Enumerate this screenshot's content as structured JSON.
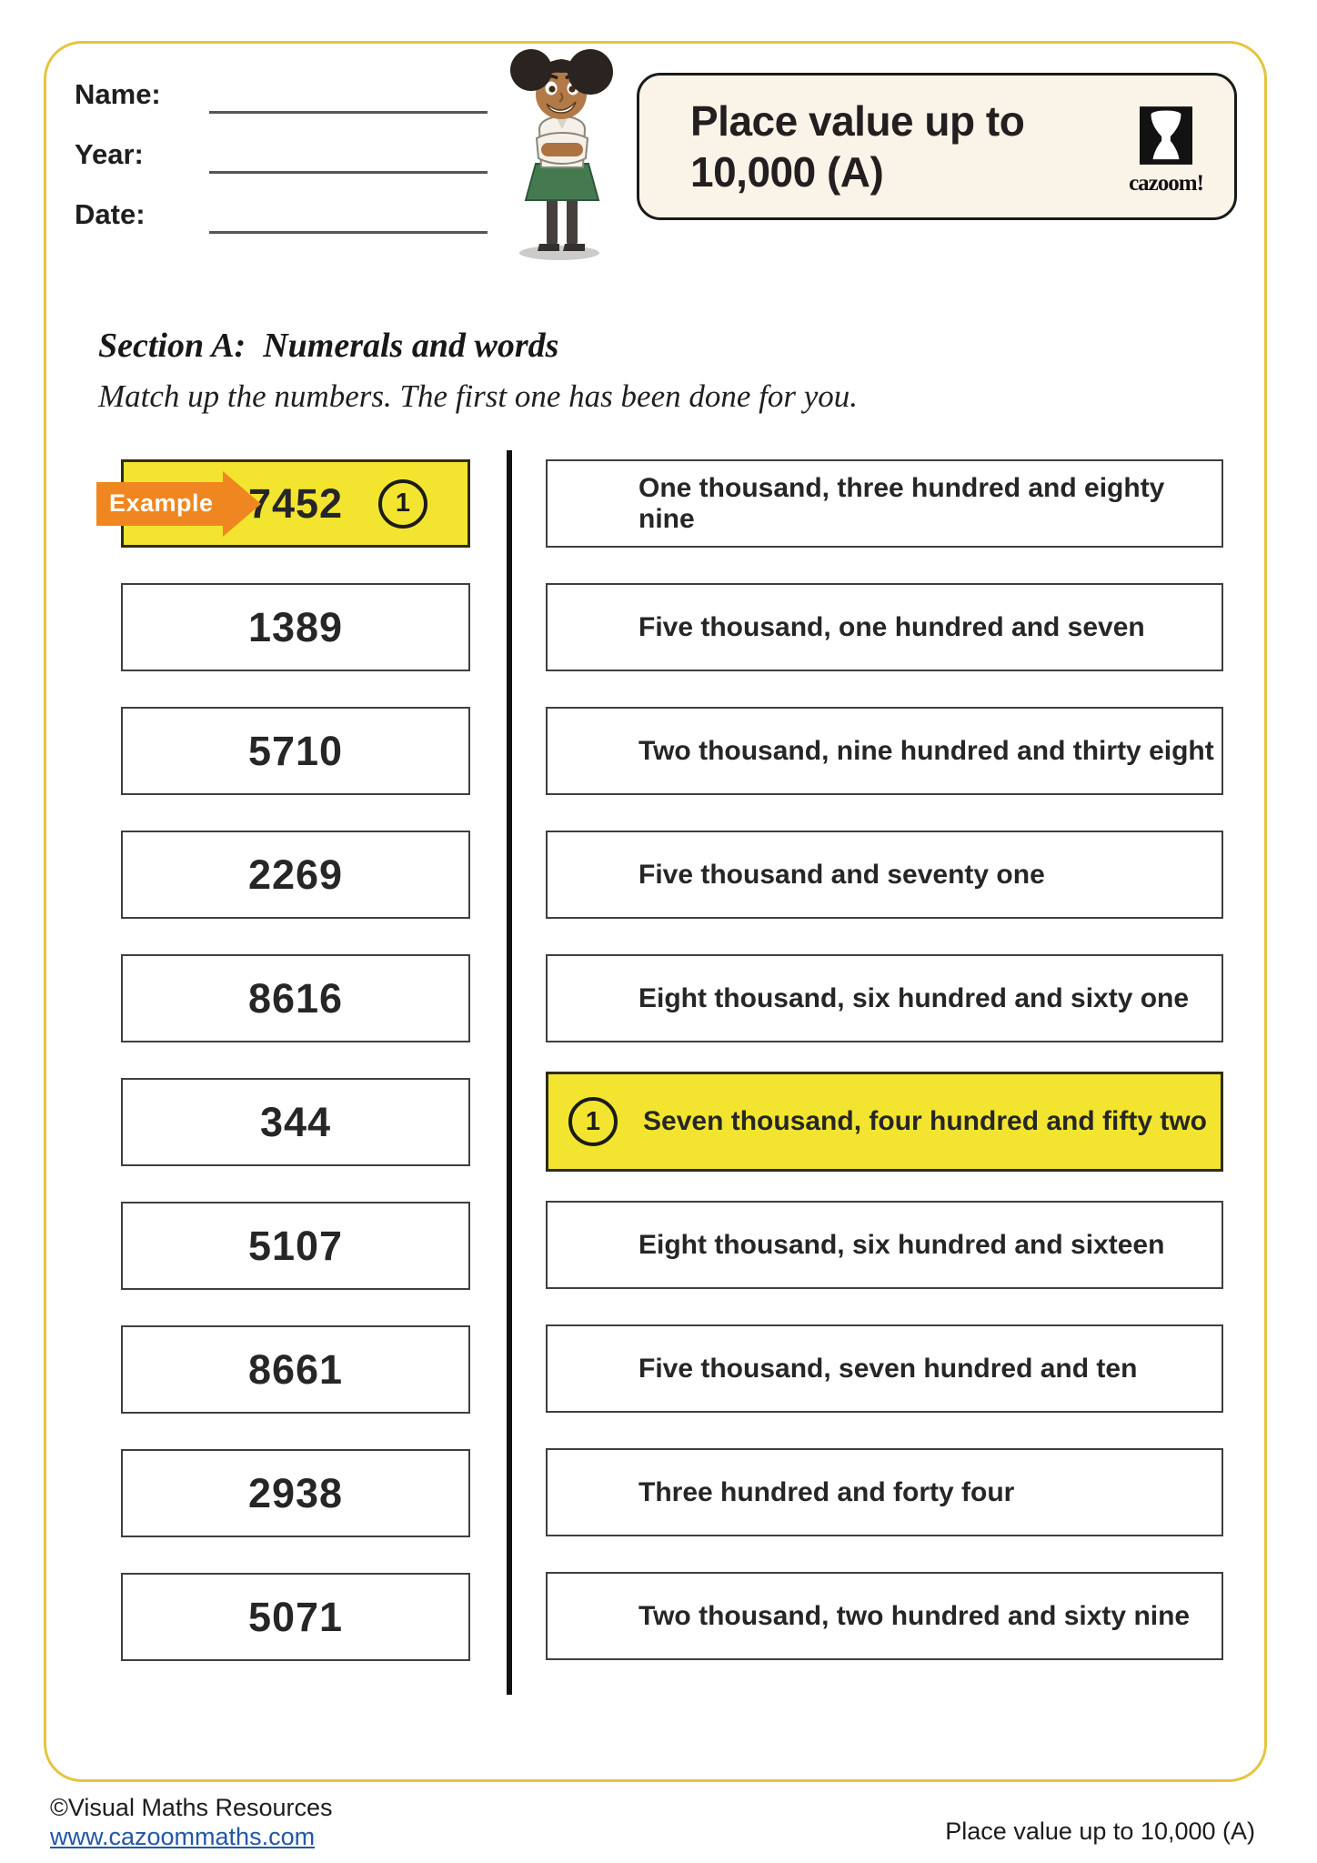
{
  "header": {
    "fields": [
      {
        "label": "Name:"
      },
      {
        "label": "Year:"
      },
      {
        "label": "Date:"
      }
    ],
    "title": {
      "line1": "Place value up to",
      "line2": "10,000 (A)"
    },
    "logo_text": "cazoom!"
  },
  "section": {
    "heading": "Section A:  Numerals and words",
    "instructions": "Match up the numbers. The first one has been done for you."
  },
  "example_label": "Example",
  "match": {
    "numbers": [
      {
        "value": "7452",
        "example": true,
        "marker": "1"
      },
      {
        "value": "1389"
      },
      {
        "value": "5710"
      },
      {
        "value": "2269"
      },
      {
        "value": "8616"
      },
      {
        "value": "344"
      },
      {
        "value": "5107"
      },
      {
        "value": "8661"
      },
      {
        "value": "2938"
      },
      {
        "value": "5071"
      }
    ],
    "words": [
      {
        "text": "One thousand, three hundred and eighty nine"
      },
      {
        "text": "Five thousand, one hundred and seven"
      },
      {
        "text": "Two thousand, nine hundred and thirty eight"
      },
      {
        "text": "Five thousand and seventy one"
      },
      {
        "text": "Eight thousand, six hundred and sixty one"
      },
      {
        "text": "Seven thousand, four hundred and fifty two",
        "highlight": true,
        "marker": "1"
      },
      {
        "text": "Eight thousand, six hundred and sixteen"
      },
      {
        "text": "Five thousand, seven hundred and ten"
      },
      {
        "text": "Three hundred and forty four"
      },
      {
        "text": "Two thousand, two hundred and sixty nine"
      }
    ]
  },
  "footer": {
    "copyright": "©Visual Maths Resources",
    "link": "www.cazoommaths.com",
    "right": "Place value up to 10,000 (A)"
  },
  "colors": {
    "page_border": "#e5c440",
    "highlight_yellow": "#f3e52f",
    "arrow_orange": "#f0861f",
    "link_blue": "#2257a8",
    "title_box_bg": "#faf4e8",
    "box_border": "#3f3f3f",
    "text_dark": "#231f20"
  }
}
